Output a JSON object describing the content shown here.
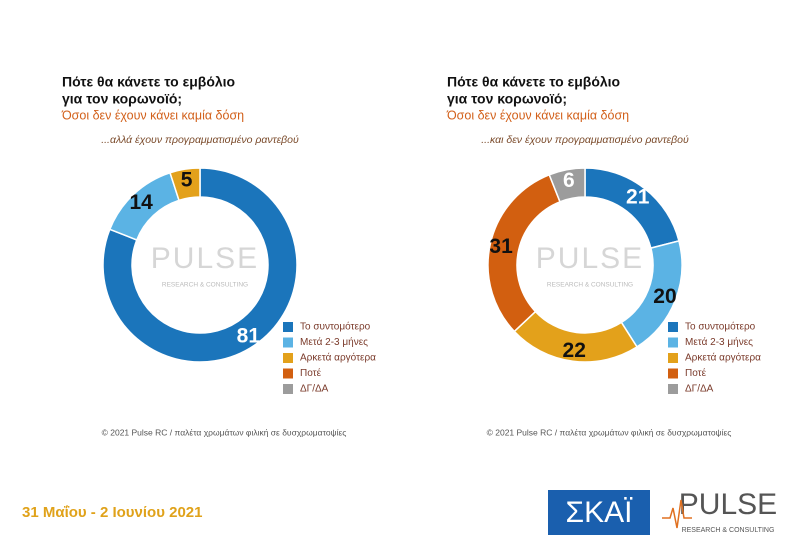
{
  "chart_data": [
    {
      "type": "donut",
      "title": [
        "Πότε θα κάνετε το εμβόλιο",
        "για τον κορωνοϊό;"
      ],
      "subtitle": "Όσοι δεν έχουν κάνει καμία δόση",
      "annotation": "...αλλά έχουν προγραμματισμένο ραντεβού",
      "categories": [
        "Το συντομότερο",
        "Μετά 2-3 μήνες",
        "Αρκετά αργότερα",
        "Ποτέ",
        "ΔΓ/ΔΑ"
      ],
      "values": [
        81,
        14,
        5,
        0,
        0
      ],
      "colors": [
        "#1b75bb",
        "#5bb3e4",
        "#e3a11b",
        "#d25f10",
        "#9c9c9c"
      ],
      "label_colors": [
        "#ffffff",
        "#111111",
        "#111111",
        "#111111",
        "#ffffff"
      ],
      "watermark": [
        "PULSE",
        "RESEARCH & CONSULTING"
      ],
      "source": "© 2021 Pulse RC  /  παλέτα χρωμάτων φιλική σε δυσχρωματοψίες"
    },
    {
      "type": "donut",
      "title": [
        "Πότε θα κάνετε το εμβόλιο",
        "για τον κορωνοϊό;"
      ],
      "subtitle": "Όσοι δεν έχουν κάνει καμία δόση",
      "annotation": "...και δεν έχουν προγραμματισμένο ραντεβού",
      "categories": [
        "Το συντομότερο",
        "Μετά 2-3 μήνες",
        "Αρκετά αργότερα",
        "Ποτέ",
        "ΔΓ/ΔΑ"
      ],
      "values": [
        21,
        20,
        22,
        31,
        6
      ],
      "colors": [
        "#1b75bb",
        "#5bb3e4",
        "#e3a11b",
        "#d25f10",
        "#9c9c9c"
      ],
      "label_colors": [
        "#ffffff",
        "#111111",
        "#111111",
        "#111111",
        "#ffffff"
      ],
      "watermark": [
        "PULSE",
        "RESEARCH & CONSULTING"
      ],
      "source": "© 2021 Pulse RC  /  παλέτα χρωμάτων φιλική σε δυσχρωματοψίες"
    }
  ],
  "footer": {
    "date": "31 Μαΐου - 2 Ιουνίου 2021",
    "logo_left": "ΣΚΑΪ",
    "logo_right": "PULSE",
    "logo_right_sub": "RESEARCH & CONSULTING"
  }
}
